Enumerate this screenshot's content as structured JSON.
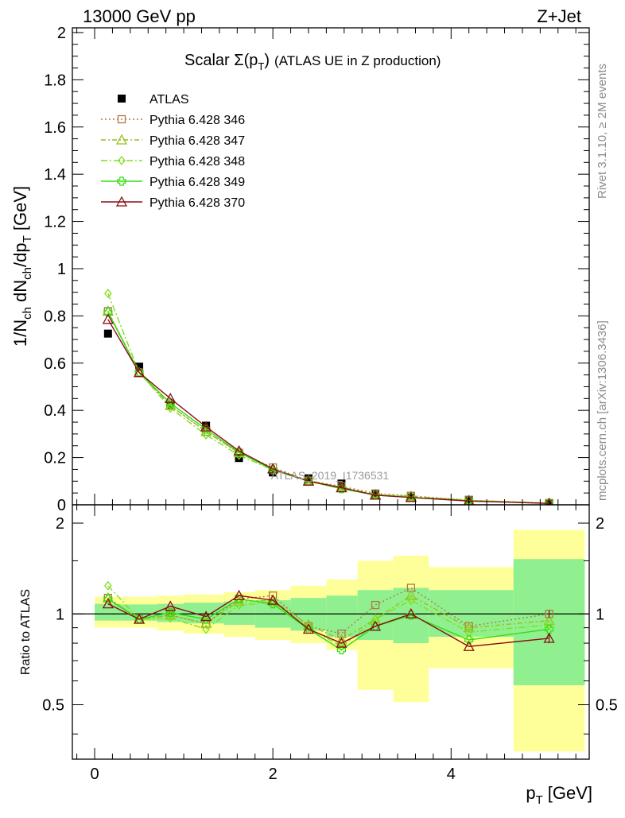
{
  "header": {
    "left": "13000 GeV pp",
    "right": "Z+Jet"
  },
  "side_labels": {
    "rivet": "Rivet 3.1.10, ≥ 2M events",
    "mcplots": "mcplots.cern.ch [arXiv:1306.3436]"
  },
  "colors": {
    "atlas": "#000000",
    "p346": "#b07a40",
    "p347": "#9bbf1a",
    "p348": "#7fe020",
    "p349": "#33dd11",
    "p370": "#8b0f16",
    "band_inner": "#90f090",
    "band_outer": "#ffff99"
  },
  "chart_data": {
    "type": "line",
    "title": "Scalar Σ(p_T) (ATLAS UE in Z production)",
    "title_parts": {
      "prefix": "Scalar ",
      "sigma": "Σ(p",
      "sub": "T",
      "close": ")",
      "suffix": "(ATLAS UE in Z production)"
    },
    "xlabel": "p_T [GeV]",
    "xlabel_parts": {
      "main": "p",
      "sub": "T",
      "unit": "[GeV]"
    },
    "ylabel": "1/N_ch dN_ch/dp_T [GeV]",
    "ratio_ylabel": "Ratio to ATLAS",
    "watermark": "ATLAS_2019_I1736531",
    "xlim": [
      -0.25,
      5.55
    ],
    "ylim": [
      0,
      2.02
    ],
    "ratio_ylim": [
      0.33,
      2.3
    ],
    "ratio_scale": "log",
    "x_ticks": [
      "0",
      "2",
      "4"
    ],
    "y_ticks": [
      "0",
      "0.2",
      "0.4",
      "0.6",
      "0.8",
      "1",
      "1.2",
      "1.4",
      "1.6",
      "1.8",
      "2"
    ],
    "ratio_ticks": [
      "0.5",
      "1",
      "2"
    ],
    "legend_position": "top-left",
    "x": [
      0.15,
      0.5,
      0.85,
      1.25,
      1.62,
      2.0,
      2.4,
      2.77,
      3.15,
      3.55,
      4.2,
      5.1
    ],
    "x_edges": [
      0.0,
      0.3,
      0.7,
      1.0,
      1.45,
      1.8,
      2.2,
      2.6,
      2.95,
      3.35,
      3.75,
      4.7,
      5.5
    ],
    "atlas": [
      0.725,
      0.585,
      0.425,
      0.335,
      0.198,
      0.137,
      0.112,
      0.09,
      0.045,
      0.031,
      0.021,
      0.007
    ],
    "band_inner": [
      [
        0.95,
        1.08
      ],
      [
        0.95,
        1.075
      ],
      [
        0.94,
        1.08
      ],
      [
        0.93,
        1.09
      ],
      [
        0.92,
        1.1
      ],
      [
        0.9,
        1.11
      ],
      [
        0.88,
        1.13
      ],
      [
        0.84,
        1.15
      ],
      [
        0.82,
        1.2
      ],
      [
        0.8,
        1.22
      ],
      [
        0.84,
        1.2
      ],
      [
        0.58,
        1.52
      ]
    ],
    "band_outer": [
      [
        0.9,
        1.14
      ],
      [
        0.9,
        1.14
      ],
      [
        0.88,
        1.15
      ],
      [
        0.86,
        1.16
      ],
      [
        0.84,
        1.18
      ],
      [
        0.82,
        1.2
      ],
      [
        0.8,
        1.24
      ],
      [
        0.76,
        1.3
      ],
      [
        0.56,
        1.5
      ],
      [
        0.51,
        1.56
      ],
      [
        0.66,
        1.43
      ],
      [
        0.35,
        1.9
      ]
    ],
    "series": [
      {
        "name": "ATLAS",
        "marker": "square",
        "values": [
          0.725,
          0.585,
          0.425,
          0.335,
          0.198,
          0.137,
          0.112,
          0.09,
          0.045,
          0.031,
          0.021,
          0.007
        ]
      },
      {
        "name": "Pythia 6.428 346",
        "marker": "open-square",
        "dash": "2,3",
        "values": [
          0.82,
          0.56,
          0.42,
          0.31,
          0.22,
          0.158,
          0.102,
          0.078,
          0.048,
          0.038,
          0.019,
          0.007
        ],
        "ratio": [
          1.13,
          0.96,
          0.99,
          0.93,
          1.12,
          1.15,
          0.91,
          0.86,
          1.07,
          1.22,
          0.91,
          1.0
        ]
      },
      {
        "name": "Pythia 6.428 347",
        "marker": "open-triangle",
        "dash": "6,3,2,3",
        "values": [
          0.82,
          0.56,
          0.42,
          0.31,
          0.22,
          0.152,
          0.103,
          0.074,
          0.043,
          0.036,
          0.019,
          0.0067
        ],
        "ratio": [
          1.13,
          0.96,
          0.99,
          0.93,
          1.1,
          1.11,
          0.92,
          0.82,
          0.96,
          1.15,
          0.9,
          0.95
        ]
      },
      {
        "name": "Pythia 6.428 348",
        "marker": "open-diamond",
        "dash": "8,3,2,3",
        "values": [
          0.895,
          0.56,
          0.41,
          0.296,
          0.21,
          0.148,
          0.1,
          0.07,
          0.043,
          0.034,
          0.018,
          0.0064
        ],
        "ratio": [
          1.24,
          0.96,
          0.97,
          0.89,
          1.07,
          1.09,
          0.9,
          0.78,
          0.96,
          1.11,
          0.87,
          0.92
        ]
      },
      {
        "name": "Pythia 6.428 349",
        "marker": "open-cross",
        "dash": "",
        "values": [
          0.815,
          0.56,
          0.43,
          0.32,
          0.222,
          0.148,
          0.1,
          0.068,
          0.041,
          0.031,
          0.017,
          0.0063
        ],
        "ratio": [
          1.12,
          0.96,
          1.01,
          0.96,
          1.12,
          1.08,
          0.89,
          0.76,
          0.91,
          0.99,
          0.82,
          0.89
        ]
      },
      {
        "name": "Pythia 6.428 370",
        "marker": "open-triangle",
        "dash": "",
        "values": [
          0.785,
          0.56,
          0.45,
          0.33,
          0.228,
          0.152,
          0.1,
          0.072,
          0.041,
          0.031,
          0.016,
          0.0058
        ],
        "ratio": [
          1.08,
          0.96,
          1.06,
          0.98,
          1.15,
          1.11,
          0.89,
          0.8,
          0.91,
          1.0,
          0.78,
          0.83
        ]
      }
    ]
  }
}
